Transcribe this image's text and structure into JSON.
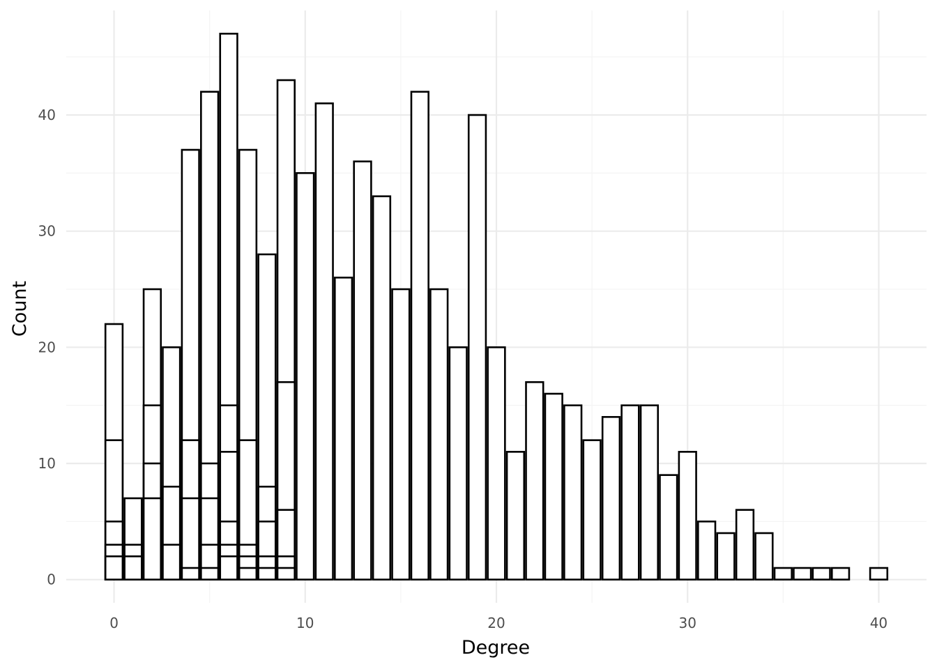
{
  "chart_data": {
    "type": "bar",
    "subtype": "histogram-overlaid-segments",
    "xlabel": "Degree",
    "ylabel": "Count",
    "xlim": [
      -2.5,
      42.5
    ],
    "ylim": [
      -2,
      49
    ],
    "x_ticks": [
      0,
      10,
      20,
      30,
      40
    ],
    "y_ticks": [
      0,
      10,
      20,
      30,
      40
    ],
    "grid": true,
    "bar_fill": "#ffffff",
    "bar_stroke": "#000000",
    "bars": [
      {
        "x": 0,
        "segments": [
          2,
          3,
          5,
          12,
          22
        ]
      },
      {
        "x": 1,
        "segments": [
          2,
          3,
          7
        ]
      },
      {
        "x": 2,
        "segments": [
          7,
          10,
          15,
          25
        ]
      },
      {
        "x": 3,
        "segments": [
          3,
          8,
          20
        ]
      },
      {
        "x": 4,
        "segments": [
          1,
          7,
          12,
          37
        ]
      },
      {
        "x": 5,
        "segments": [
          1,
          3,
          7,
          10,
          42
        ]
      },
      {
        "x": 6,
        "segments": [
          2,
          3,
          5,
          11,
          15,
          47
        ]
      },
      {
        "x": 7,
        "segments": [
          1,
          2,
          3,
          12,
          37
        ]
      },
      {
        "x": 8,
        "segments": [
          1,
          2,
          5,
          8,
          28
        ]
      },
      {
        "x": 9,
        "segments": [
          1,
          2,
          6,
          17,
          43
        ]
      },
      {
        "x": 10,
        "segments": [
          35
        ]
      },
      {
        "x": 11,
        "segments": [
          41
        ]
      },
      {
        "x": 12,
        "segments": [
          26
        ]
      },
      {
        "x": 13,
        "segments": [
          36
        ]
      },
      {
        "x": 14,
        "segments": [
          33
        ]
      },
      {
        "x": 15,
        "segments": [
          25
        ]
      },
      {
        "x": 16,
        "segments": [
          42
        ]
      },
      {
        "x": 17,
        "segments": [
          25
        ]
      },
      {
        "x": 18,
        "segments": [
          20
        ]
      },
      {
        "x": 19,
        "segments": [
          40
        ]
      },
      {
        "x": 20,
        "segments": [
          20
        ]
      },
      {
        "x": 21,
        "segments": [
          11
        ]
      },
      {
        "x": 22,
        "segments": [
          17
        ]
      },
      {
        "x": 23,
        "segments": [
          16
        ]
      },
      {
        "x": 24,
        "segments": [
          15
        ]
      },
      {
        "x": 25,
        "segments": [
          12
        ]
      },
      {
        "x": 26,
        "segments": [
          14
        ]
      },
      {
        "x": 27,
        "segments": [
          15
        ]
      },
      {
        "x": 28,
        "segments": [
          15
        ]
      },
      {
        "x": 29,
        "segments": [
          9
        ]
      },
      {
        "x": 30,
        "segments": [
          11
        ]
      },
      {
        "x": 31,
        "segments": [
          5
        ]
      },
      {
        "x": 32,
        "segments": [
          4
        ]
      },
      {
        "x": 33,
        "segments": [
          6
        ]
      },
      {
        "x": 34,
        "segments": [
          4
        ]
      },
      {
        "x": 35,
        "segments": [
          1
        ]
      },
      {
        "x": 36,
        "segments": [
          1
        ]
      },
      {
        "x": 37,
        "segments": [
          1
        ]
      },
      {
        "x": 38,
        "segments": [
          1
        ]
      },
      {
        "x": 40,
        "segments": [
          1
        ]
      }
    ]
  }
}
